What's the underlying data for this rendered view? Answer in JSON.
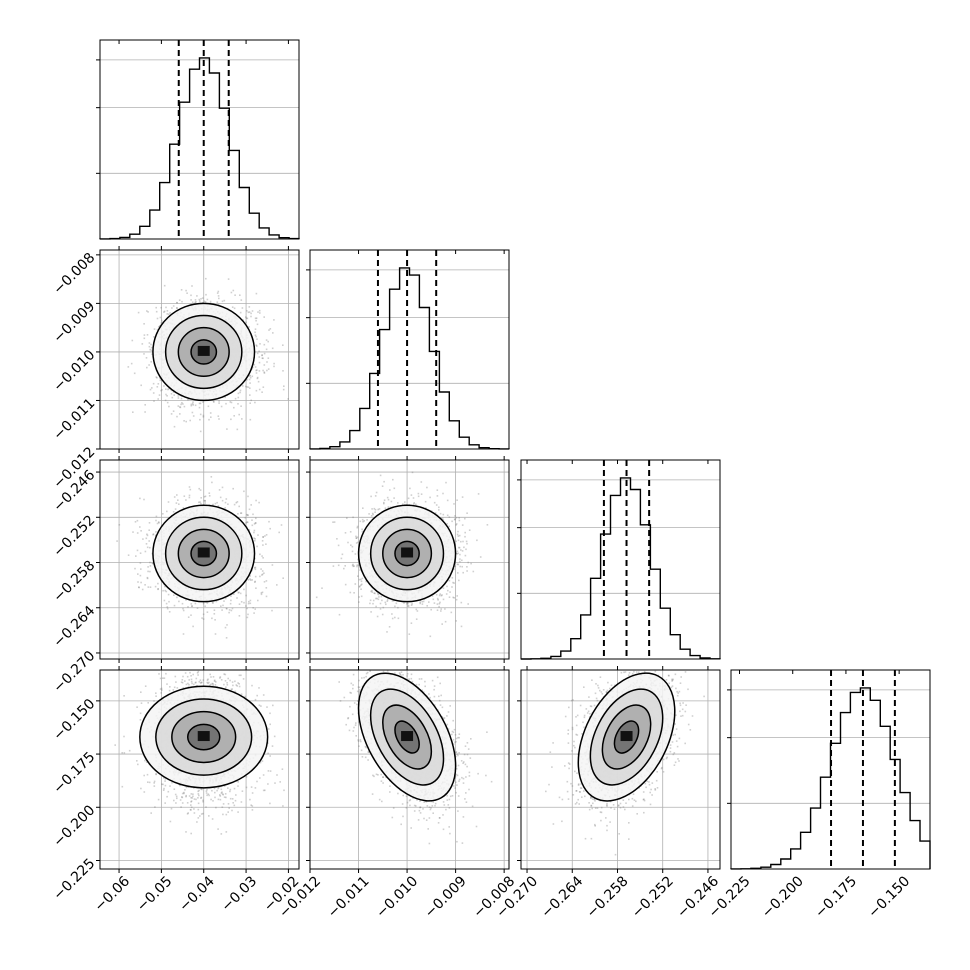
{
  "chart_data": {
    "type": "corner",
    "parameters": [
      {
        "range": [
          -0.0645,
          -0.0175
        ],
        "ticks": [
          "−0.06",
          "−0.05",
          "−0.04",
          "−0.03",
          "−0.02"
        ],
        "tick_values": [
          -0.06,
          -0.05,
          -0.04,
          -0.03,
          -0.02
        ],
        "median": -0.04,
        "quantiles": [
          -0.0459,
          -0.04,
          -0.0341
        ],
        "sd": 0.006
      },
      {
        "range": [
          -0.012,
          -0.0079
        ],
        "ticks": [
          "−0.012",
          "−0.011",
          "−0.010",
          "−0.009",
          "−0.008"
        ],
        "tick_values": [
          -0.012,
          -0.011,
          -0.01,
          -0.009,
          -0.008
        ],
        "median": -0.01,
        "quantiles": [
          -0.0106,
          -0.01,
          -0.0094
        ],
        "sd": 0.0005
      },
      {
        "range": [
          -0.2708,
          -0.2444
        ],
        "ticks": [
          "−0.270",
          "−0.264",
          "−0.258",
          "−0.252",
          "−0.246"
        ],
        "tick_values": [
          -0.27,
          -0.264,
          -0.258,
          -0.252,
          -0.246
        ],
        "median": -0.2568,
        "quantiles": [
          -0.2598,
          -0.2568,
          -0.2538
        ],
        "sd": 0.0032
      },
      {
        "range": [
          -0.229,
          -0.1355
        ],
        "ticks": [
          "−0.225",
          "−0.200",
          "−0.175",
          "−0.150"
        ],
        "tick_values": [
          -0.225,
          -0.2,
          -0.175,
          -0.15
        ],
        "median": -0.167,
        "quantiles": [
          -0.182,
          -0.167,
          -0.152
        ],
        "sd": 0.015
      }
    ],
    "correlations": [
      [
        1,
        0,
        0,
        0
      ],
      [
        0,
        1,
        0,
        -0.45
      ],
      [
        0,
        0,
        1,
        0.4
      ],
      [
        0,
        -0.45,
        0.4,
        1
      ]
    ],
    "histogram_bins": 20,
    "contour_levels_sigma": [
      0.5,
      1.0,
      1.5,
      2.0
    ],
    "grid": true
  }
}
